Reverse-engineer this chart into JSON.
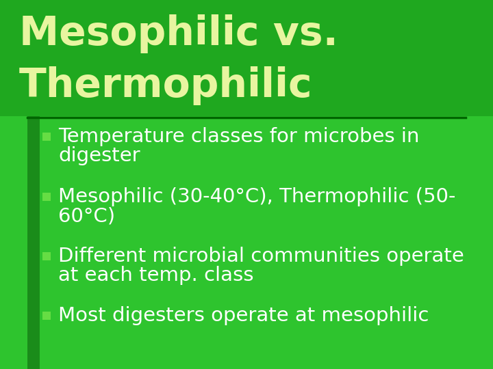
{
  "title_line1": "Mesophilic vs.",
  "title_line2": "Thermophilic",
  "title_color": "#e8f5a0",
  "bg_color_top": "#1fa81f",
  "bg_color_bottom": "#2ec42e",
  "sidebar_color": "#1a8c1a",
  "bullet_square_color": "#66dd44",
  "bullet_text_color": "#ffffff",
  "separator_color": "#006600",
  "bullet_points": [
    "Temperature classes for microbes in\ndigester",
    "Mesophilic (30-40°C), Thermophilic (50-\n60°C)",
    "Different microbial communities operate\nat each temp. class",
    "Most digesters operate at mesophilic"
  ],
  "title_fontsize": 42,
  "bullet_fontsize": 21,
  "figsize": [
    7.2,
    5.4
  ],
  "dpi": 100
}
